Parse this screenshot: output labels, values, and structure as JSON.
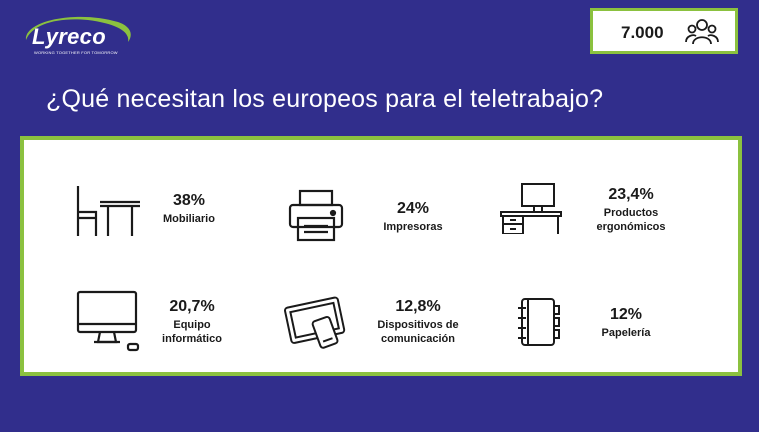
{
  "brand": {
    "name": "Lyreco",
    "tagline": "WORKING TOGETHER FOR TOMORROW",
    "colors": {
      "navy": "#312e8c",
      "green": "#8bc13f"
    }
  },
  "respondents": {
    "value": "7.000",
    "icon": "people-group-icon"
  },
  "title": "¿Qué necesitan los europeos para el teletrabajo?",
  "items": [
    {
      "icon": "furniture-icon",
      "percent": "38%",
      "label": "Mobiliario"
    },
    {
      "icon": "printer-icon",
      "percent": "24%",
      "label": "Impresoras"
    },
    {
      "icon": "desk-computer-icon",
      "percent": "23,4%",
      "label": "Productos ergonómicos"
    },
    {
      "icon": "monitor-icon",
      "percent": "20,7%",
      "label": "Equipo informático"
    },
    {
      "icon": "tablet-phone-icon",
      "percent": "12,8%",
      "label": "Dispositivos de comunicación"
    },
    {
      "icon": "notebook-icon",
      "percent": "12%",
      "label": "Papelería"
    }
  ]
}
